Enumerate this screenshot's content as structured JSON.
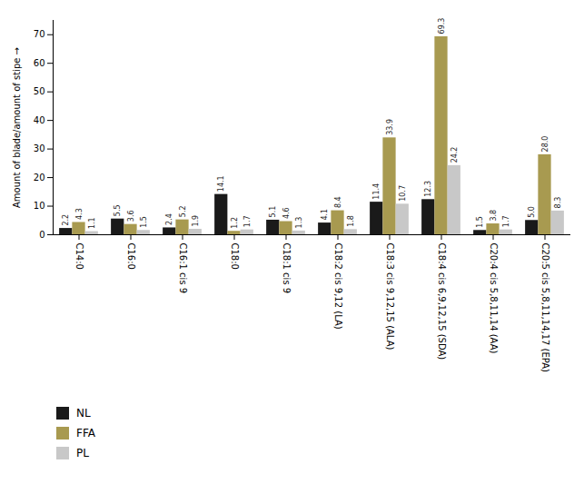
{
  "chart_data": {
    "type": "bar",
    "categories": [
      "C14:0",
      "C16:0",
      "C16:1 cis 9",
      "C18:0",
      "C18:1 cis 9",
      "C18:2 cis 9,12 (LA)",
      "C18:3 cis 9,12,15 (ALA)",
      "C18:4 cis 6,9,12,15 (SDA)",
      "C20:4 cis 5,8,11,14 (AA)",
      "C20:5 cis 5,8,11,14,17 (EPA)"
    ],
    "series": [
      {
        "name": "NL",
        "color": "#1a1a1a",
        "values": [
          2.2,
          5.5,
          2.4,
          14.1,
          5.1,
          4.1,
          11.4,
          12.3,
          1.5,
          5.0
        ],
        "value_labels": [
          "2.2",
          "5.5",
          "2.4",
          "14.1",
          "5.1",
          "4.1",
          "11.4",
          "12.3",
          "1.5",
          "5.0"
        ]
      },
      {
        "name": "FFA",
        "color": "#a89a50",
        "values": [
          4.3,
          3.6,
          5.2,
          1.2,
          4.6,
          8.4,
          33.9,
          69.3,
          3.8,
          28.0
        ],
        "value_labels": [
          "4.3",
          "3.6",
          "5.2",
          "1.2",
          "4.6",
          "8.4",
          "33.9",
          "69.3",
          "3.8",
          "28.0"
        ]
      },
      {
        "name": "PL",
        "color": "#c8c8c8",
        "values": [
          1.1,
          1.5,
          1.9,
          1.7,
          1.3,
          1.8,
          10.7,
          24.2,
          1.7,
          8.3
        ],
        "value_labels": [
          "1.1",
          "1.5",
          "1.9",
          "1.7",
          "1.3",
          "1.8",
          "10.7",
          "24.2",
          "1.7",
          "8.3"
        ]
      }
    ],
    "ylabel": "Amount of blade/amount of stipe",
    "ylim": [
      0,
      75
    ],
    "yticks": [
      0,
      10,
      20,
      30,
      40,
      50,
      60,
      70
    ],
    "data_labels": true,
    "grid": false,
    "legend": "below"
  }
}
